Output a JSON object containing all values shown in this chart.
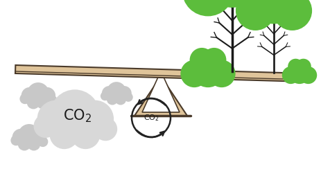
{
  "bg_color": "#ffffff",
  "beam_color": "#dfc49a",
  "beam_outline": "#4a3a2a",
  "beam_inner_line": "#4a3a2a",
  "pivot_color": "#dfc49a",
  "pivot_outline": "#4a3a2a",
  "cloud_color": "#d8d8d8",
  "cloud_color2": "#c8c8c8",
  "green_light": "#5cbd3c",
  "green_mid": "#4aad30",
  "trunk_color": "#1a1a1a",
  "text_color": "#1a1a1a",
  "recycle_color": "#222222"
}
